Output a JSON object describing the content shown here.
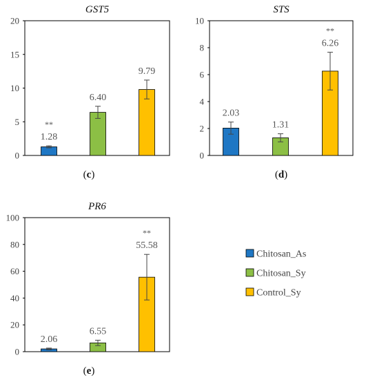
{
  "chart_data": [
    {
      "type": "bar",
      "title": "GST5",
      "caption": {
        "open": "(",
        "letter": "c",
        "close": ")"
      },
      "categories": [
        "Chitosan_As",
        "Chitosan_Sy",
        "Control_Sy"
      ],
      "values": [
        1.28,
        6.4,
        9.79
      ],
      "errors": [
        0.15,
        0.9,
        1.4
      ],
      "value_labels": [
        "1.28",
        "6.40",
        "9.79"
      ],
      "significance": [
        "**",
        "",
        ""
      ],
      "ylim": [
        0,
        20
      ],
      "yticks": [
        "0",
        "5",
        "10",
        "15",
        "20"
      ],
      "ytick_values": [
        0,
        5,
        10,
        15,
        20
      ]
    },
    {
      "type": "bar",
      "title": "STS",
      "caption": {
        "open": "(",
        "letter": "d",
        "close": ")"
      },
      "categories": [
        "Chitosan_As",
        "Chitosan_Sy",
        "Control_Sy"
      ],
      "values": [
        2.03,
        1.31,
        6.26
      ],
      "errors": [
        0.45,
        0.3,
        1.4
      ],
      "value_labels": [
        "2.03",
        "1.31",
        "6.26"
      ],
      "significance": [
        "",
        "",
        "**"
      ],
      "ylim": [
        0,
        10
      ],
      "yticks": [
        "0",
        "2",
        "4",
        "6",
        "8",
        "10"
      ],
      "ytick_values": [
        0,
        2,
        4,
        6,
        8,
        10
      ]
    },
    {
      "type": "bar",
      "title": "PR6",
      "caption": {
        "open": "(",
        "letter": "e",
        "close": ")"
      },
      "categories": [
        "Chitosan_As",
        "Chitosan_Sy",
        "Control_Sy"
      ],
      "values": [
        2.06,
        6.55,
        55.58
      ],
      "errors": [
        0.6,
        2.0,
        17.0
      ],
      "value_labels": [
        "2.06",
        "6.55",
        "55.58"
      ],
      "significance": [
        "",
        "",
        "**"
      ],
      "ylim": [
        0,
        100
      ],
      "yticks": [
        "0",
        "20",
        "40",
        "60",
        "80",
        "100"
      ],
      "ytick_values": [
        0,
        20,
        40,
        60,
        80,
        100
      ]
    }
  ],
  "legend": {
    "placement": "right",
    "items": [
      {
        "label": "Chitosan_As",
        "color": "#1f77c4"
      },
      {
        "label": "Chitosan_Sy",
        "color": "#8cbf45"
      },
      {
        "label": "Control_Sy",
        "color": "#ffc000"
      }
    ]
  },
  "colors": {
    "error_bar": "#444444",
    "axis": "#000000"
  }
}
